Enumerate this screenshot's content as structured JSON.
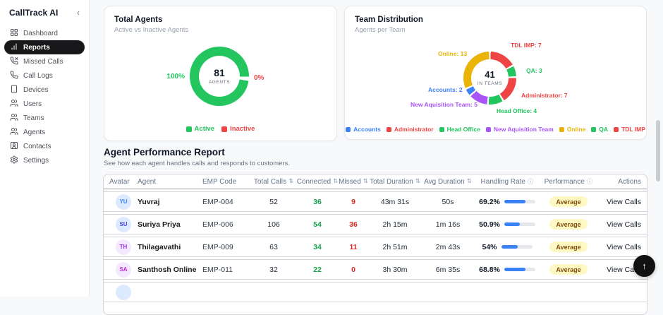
{
  "sidebar": {
    "brand": "CallTrack AI",
    "collapse_glyph": "‹",
    "items": [
      {
        "label": "Dashboard",
        "icon": "grid-icon",
        "active": false
      },
      {
        "label": "Reports",
        "icon": "bar-chart-icon",
        "active": true
      },
      {
        "label": "Missed Calls",
        "icon": "phone-missed-icon",
        "active": false
      },
      {
        "label": "Call Logs",
        "icon": "phone-icon",
        "active": false
      },
      {
        "label": "Devices",
        "icon": "smartphone-icon",
        "active": false
      },
      {
        "label": "Users",
        "icon": "users-icon",
        "active": false
      },
      {
        "label": "Teams",
        "icon": "users-icon",
        "active": false
      },
      {
        "label": "Agents",
        "icon": "users-icon",
        "active": false
      },
      {
        "label": "Contacts",
        "icon": "contact-card-icon",
        "active": false
      },
      {
        "label": "Settings",
        "icon": "gear-icon",
        "active": false
      }
    ]
  },
  "chart_data": [
    {
      "type": "pie",
      "title": "Total Agents",
      "subtitle": "Active vs Inactive Agents",
      "center_value": "81",
      "center_label": "AGENTS",
      "rotation_deg": 95,
      "gap_deg": 8,
      "legend_position": "bottom",
      "segments": [
        {
          "name": "Active",
          "value": 81,
          "pct_label": "100%",
          "color": "#22c55e"
        },
        {
          "name": "Inactive",
          "value": 0,
          "pct_label": "0%",
          "color": "#ef4444"
        }
      ]
    },
    {
      "type": "pie",
      "title": "Team Distribution",
      "subtitle": "Agents per Team",
      "center_value": "41",
      "center_label": "IN TEAMS",
      "rotation_deg": 0,
      "gap_deg": 4,
      "legend_position": "bottom",
      "segments": [
        {
          "name": "TDL IMP",
          "value": 7,
          "label": "TDL IMP: 7",
          "color": "#ef4444"
        },
        {
          "name": "QA",
          "value": 3,
          "label": "QA: 3",
          "color": "#22c55e"
        },
        {
          "name": "Administrator",
          "value": 7,
          "label": "Administrator: 7",
          "color": "#ef4444"
        },
        {
          "name": "Head Office",
          "value": 4,
          "label": "Head Office: 4",
          "color": "#22c55e"
        },
        {
          "name": "New Aquisition Team",
          "value": 5,
          "label": "New Aquisition Team: 5",
          "color": "#a855f7"
        },
        {
          "name": "Accounts",
          "value": 2,
          "label": "Accounts: 2",
          "color": "#3b82f6"
        },
        {
          "name": "Online",
          "value": 13,
          "label": "Online: 13",
          "color": "#eab308"
        }
      ],
      "legend_items": [
        {
          "label": "Accounts",
          "color": "#3b82f6"
        },
        {
          "label": "Administrator",
          "color": "#ef4444"
        },
        {
          "label": "Head Office",
          "color": "#22c55e"
        },
        {
          "label": "New Aquisition Team",
          "color": "#a855f7"
        },
        {
          "label": "Online",
          "color": "#eab308"
        },
        {
          "label": "QA",
          "color": "#22c55e"
        },
        {
          "label": "TDL IMP",
          "color": "#ef4444"
        }
      ]
    }
  ],
  "table": {
    "heading": "Agent Performance Report",
    "subheading": "See how each agent handles calls and responds to customers.",
    "columns": [
      {
        "label": "Avatar"
      },
      {
        "label": "Agent"
      },
      {
        "label": "EMP Code"
      },
      {
        "label": "Total Calls",
        "suffix": "⇅"
      },
      {
        "label": "Connected",
        "suffix": "⇅"
      },
      {
        "label": "Missed",
        "suffix": "⇅"
      },
      {
        "label": "Total Duration",
        "suffix": "⇅"
      },
      {
        "label": "Avg Duration",
        "suffix": "⇅"
      },
      {
        "label": "Handling Rate",
        "suffix": "ⓘ"
      },
      {
        "label": "Performance",
        "suffix": "ⓘ"
      },
      {
        "label": "Actions"
      }
    ],
    "rows": [
      {
        "initials": "YU",
        "avatar_bg": "#dbeafe",
        "avatar_fg": "#3b82f6",
        "name": "Yuvraj",
        "emp": "EMP-004",
        "total_calls": "52",
        "connected": "36",
        "missed": "9",
        "total_duration": "43m 31s",
        "avg_duration": "50s",
        "handling_rate": "69.2%",
        "handling_pct": 69.2,
        "performance": "Average",
        "action_label": "View Calls"
      },
      {
        "initials": "SU",
        "avatar_bg": "#dbeafe",
        "avatar_fg": "#4f46e5",
        "name": "Suriya Priya",
        "emp": "EMP-006",
        "total_calls": "106",
        "connected": "54",
        "missed": "36",
        "total_duration": "2h 15m",
        "avg_duration": "1m 16s",
        "handling_rate": "50.9%",
        "handling_pct": 50.9,
        "performance": "Average",
        "action_label": "View Calls"
      },
      {
        "initials": "TH",
        "avatar_bg": "#f3e8ff",
        "avatar_fg": "#9333ea",
        "name": "Thilagavathi",
        "emp": "EMP-009",
        "total_calls": "63",
        "connected": "34",
        "missed": "11",
        "total_duration": "2h 51m",
        "avg_duration": "2m 43s",
        "handling_rate": "54%",
        "handling_pct": 54,
        "performance": "Average",
        "action_label": "View Calls"
      },
      {
        "initials": "SA",
        "avatar_bg": "#f3e8ff",
        "avatar_fg": "#c026d3",
        "name": "Santhosh Online",
        "emp": "EMP-011",
        "total_calls": "32",
        "connected": "22",
        "missed": "0",
        "total_duration": "3h 30m",
        "avg_duration": "6m 35s",
        "handling_rate": "68.8%",
        "handling_pct": 68.8,
        "performance": "Average",
        "action_label": "View Calls"
      }
    ],
    "partial_row": {
      "avatar_bg": "#dbeafe"
    }
  },
  "floating": {
    "scroll_top_glyph": "↑"
  },
  "colors": {
    "sidebar_active_bg": "#18181b",
    "progress_fill": "#3b82f6",
    "badge_bg": "#fef9c3",
    "badge_text": "#854d0e",
    "positive": "#16a34a",
    "negative": "#dc2626"
  }
}
